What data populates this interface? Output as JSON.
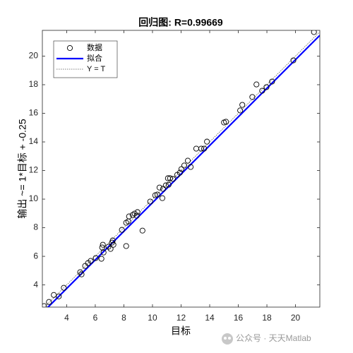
{
  "chart_data": {
    "type": "scatter",
    "title": "回归图: R=0.99669",
    "x_label": "目标",
    "y_label": "输出 ~= 1*目标 + -0.25",
    "x": [
      2.42,
      2.76,
      3.1,
      3.45,
      3.8,
      4.94,
      5.04,
      5.29,
      5.49,
      5.68,
      6.03,
      6.43,
      6.48,
      6.53,
      6.58,
      6.92,
      7.07,
      7.17,
      7.22,
      7.27,
      7.86,
      8.16,
      8.16,
      8.31,
      8.36,
      8.61,
      8.75,
      8.9,
      8.95,
      9.3,
      9.84,
      10.19,
      10.34,
      10.49,
      10.69,
      10.74,
      10.93,
      11.08,
      11.13,
      11.23,
      11.43,
      11.73,
      11.92,
      12.02,
      12.22,
      12.47,
      12.67,
      13.06,
      13.41,
      13.61,
      13.81,
      15.0,
      15.14,
      16.13,
      16.28,
      16.98,
      17.27,
      17.67,
      17.97,
      18.36,
      19.85,
      21.29
    ],
    "series": [
      {
        "name": "数据",
        "color": "#000000",
        "values": [
          2.52,
          2.81,
          3.3,
          3.2,
          3.8,
          4.89,
          4.74,
          5.33,
          5.53,
          5.68,
          5.88,
          5.83,
          6.62,
          6.81,
          6.27,
          6.67,
          6.52,
          6.96,
          7.11,
          6.81,
          7.85,
          6.72,
          8.35,
          8.44,
          8.79,
          8.89,
          8.99,
          8.84,
          9.09,
          7.8,
          9.83,
          10.27,
          10.32,
          10.81,
          10.07,
          10.72,
          10.96,
          11.46,
          11.01,
          11.46,
          11.41,
          11.7,
          11.85,
          12.1,
          12.35,
          12.69,
          12.25,
          13.53,
          13.53,
          13.53,
          14.02,
          15.36,
          15.41,
          16.2,
          16.59,
          17.14,
          18.02,
          17.58,
          17.83,
          18.22,
          19.7,
          21.68
        ]
      },
      {
        "name": "拟合",
        "color": "#0000ff",
        "slope": 1,
        "intercept": -0.25
      },
      {
        "name": "Y = T",
        "color": "#555555",
        "slope": 1,
        "intercept": 0
      }
    ],
    "xlim": [
      2.3,
      21.7
    ],
    "ylim": [
      2.45,
      21.8
    ],
    "xticks": [
      4,
      6,
      8,
      10,
      12,
      14,
      16,
      18,
      20
    ],
    "yticks": [
      4,
      6,
      8,
      10,
      12,
      14,
      16,
      18,
      20
    ],
    "grid": false,
    "legend": "upper-left"
  },
  "watermark": "公众号 · 天天Matlab"
}
